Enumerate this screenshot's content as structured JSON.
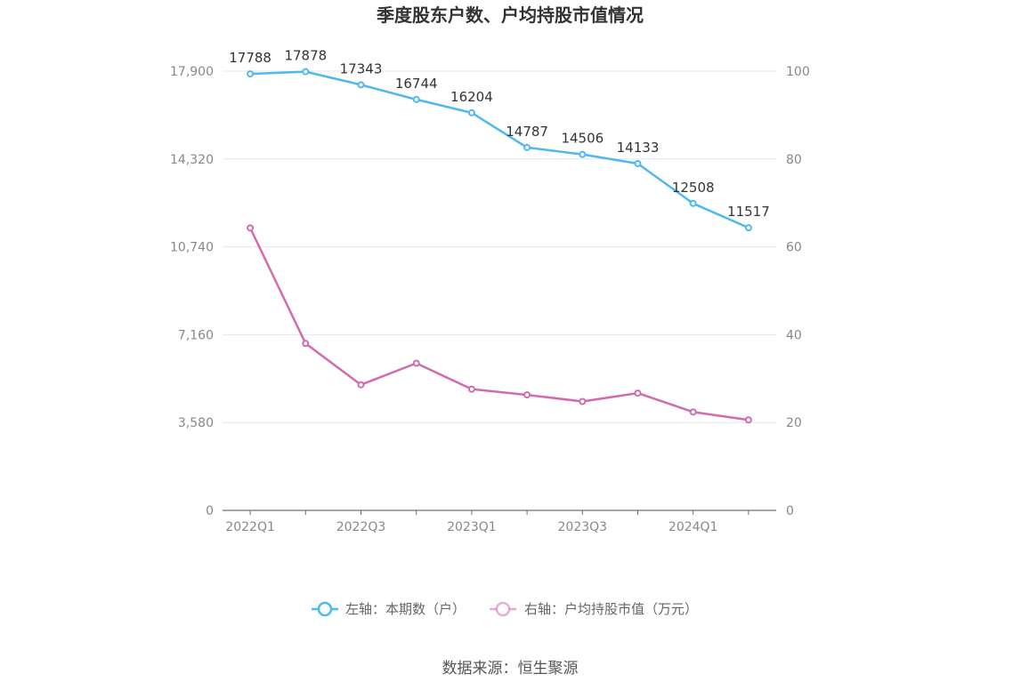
{
  "chart_data": {
    "type": "line",
    "title": "季度股东户数、户均持股市值情况",
    "x": [
      "2022Q1",
      "2022Q2",
      "2022Q3",
      "2022Q4",
      "2023Q1",
      "2023Q2",
      "2023Q3",
      "2023Q4",
      "2024Q1",
      "2024Q2"
    ],
    "x_tick_labels": [
      "2022Q1",
      "2022Q3",
      "2023Q1",
      "2023Q3",
      "2024Q1"
    ],
    "left_axis": {
      "ylim": [
        0,
        17900
      ],
      "ticks": [
        "0",
        "3,580",
        "7,160",
        "10,740",
        "14,320",
        "17,900"
      ],
      "tick_values": [
        0,
        3580,
        7160,
        10740,
        14320,
        17900
      ]
    },
    "right_axis": {
      "ylim": [
        0,
        100
      ],
      "ticks": [
        "0",
        "20",
        "40",
        "60",
        "80",
        "100"
      ],
      "tick_values": [
        0,
        20,
        40,
        60,
        80,
        100
      ]
    },
    "series": [
      {
        "name": "左轴：本期数（户）",
        "axis": "left",
        "color": "#4fb8ef",
        "values": [
          17788,
          17878,
          17343,
          16744,
          16204,
          14787,
          14506,
          14133,
          12508,
          11517
        ],
        "labels": [
          "17788",
          "17878",
          "17343",
          "16744",
          "16204",
          "14787",
          "14506",
          "14133",
          "12508",
          "11517"
        ]
      },
      {
        "name": "右轴：户均持股市值（万元）",
        "axis": "right",
        "color": "#d46aae",
        "values": [
          64.3,
          38.0,
          28.6,
          33.5,
          27.6,
          26.3,
          24.8,
          26.7,
          22.4,
          20.6
        ]
      }
    ],
    "grid": true,
    "legend_position": "bottom"
  },
  "source": "数据来源：恒生聚源"
}
